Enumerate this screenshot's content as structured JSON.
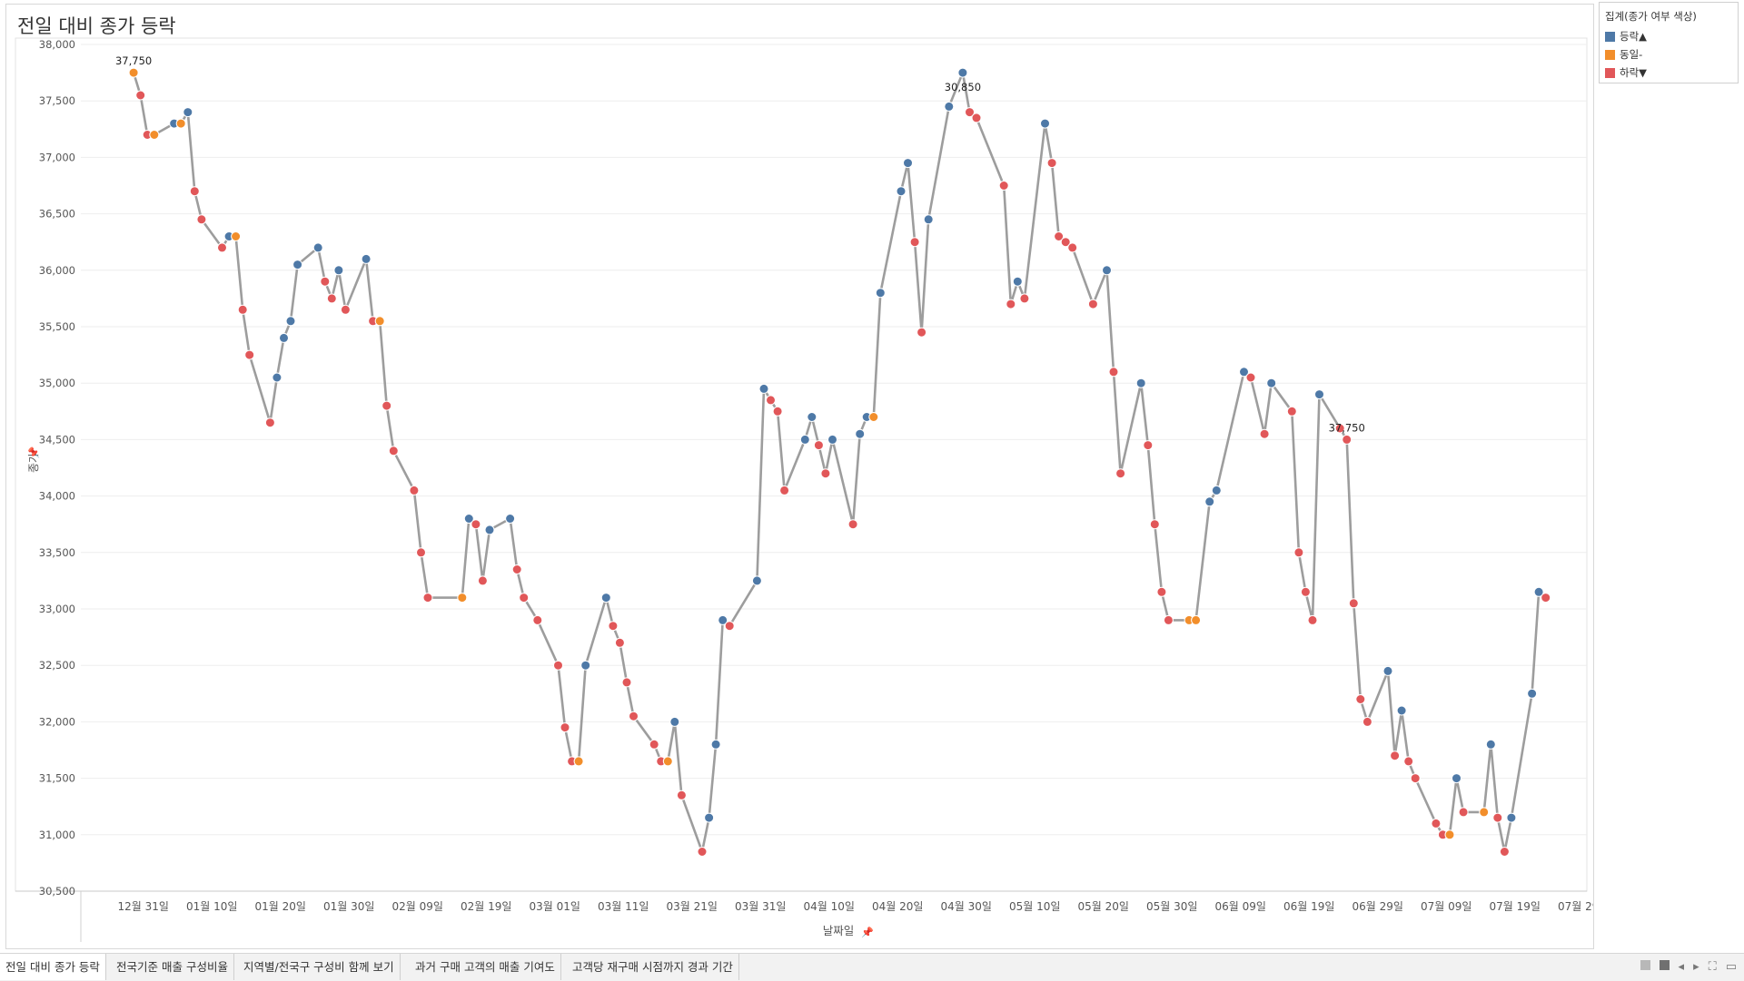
{
  "app": {
    "title": "전일 대비 종가 등락"
  },
  "legend": {
    "title": "집계(종가 여부 색상)",
    "items": [
      {
        "label": "등락▲",
        "color": "#4e79a7"
      },
      {
        "label": "동일-",
        "color": "#f28e2b"
      },
      {
        "label": "하락▼",
        "color": "#e15759"
      }
    ]
  },
  "tabs": [
    {
      "label": "전일 대비 종가 등락",
      "active": true
    },
    {
      "label": "전국기준 매출 구성비율",
      "active": false
    },
    {
      "label": "지역별/전국구 구성비 함께 보기",
      "active": false
    },
    {
      "label": "과거 구매 고객의 매출 기여도",
      "active": false
    },
    {
      "label": "고객당 재구매 시점까지 경과 기간",
      "active": false
    }
  ],
  "tab_controls": [
    "grid-view-icon",
    "single-view-icon",
    "prev-icon",
    "next-icon",
    "fullscreen-icon",
    "present-icon"
  ],
  "chart_data": {
    "type": "line",
    "title": "전일 대비 종가 등락",
    "xlabel": "날짜일",
    "ylabel": "종가",
    "x_ticks": [
      "12월 31일",
      "01월 10일",
      "01월 20일",
      "01월 30일",
      "02월 09일",
      "02월 19일",
      "03월 01일",
      "03월 11일",
      "03월 21일",
      "03월 31일",
      "04월 10일",
      "04월 20일",
      "04월 30일",
      "05월 10일",
      "05월 20일",
      "05월 30일",
      "06월 09일",
      "06월 19일",
      "06월 29일",
      "07월 09일",
      "07월 19일",
      "07월 29일"
    ],
    "y_ticks": [
      "30,500",
      "31,000",
      "31,500",
      "32,000",
      "32,500",
      "33,000",
      "33,500",
      "34,000",
      "34,500",
      "35,000",
      "35,500",
      "36,000",
      "36,500",
      "37,000",
      "37,500",
      "38,000"
    ],
    "ylim": [
      30500,
      38000
    ],
    "x_domain_days": [
      -9.1,
      210.5
    ],
    "grid": true,
    "series_color": "#9d9d9d",
    "colors": {
      "up": "#4e79a7",
      "same": "#f28e2b",
      "down": "#e15759"
    },
    "annotations": [
      {
        "text": "37,750",
        "point_index": 0,
        "position": "above"
      },
      {
        "text": "37,750",
        "point_index": 117,
        "position": "above"
      },
      {
        "text": "30,850",
        "point_index": 82,
        "position": "below"
      },
      {
        "text": "30,850",
        "point_index": 200,
        "position": "below"
      }
    ],
    "points": [
      {
        "day": -1.4,
        "value": 37750,
        "status": "same"
      },
      {
        "day": -0.4,
        "value": 37550,
        "status": "down"
      },
      {
        "day": 0.6,
        "value": 37200,
        "status": "down"
      },
      {
        "day": 1.6,
        "value": 37200,
        "status": "same"
      },
      {
        "day": 4.5,
        "value": 37300,
        "status": "up"
      },
      {
        "day": 5.5,
        "value": 37300,
        "status": "same"
      },
      {
        "day": 6.5,
        "value": 37400,
        "status": "up"
      },
      {
        "day": 7.5,
        "value": 36700,
        "status": "down"
      },
      {
        "day": 8.5,
        "value": 36450,
        "status": "down"
      },
      {
        "day": 11.5,
        "value": 36200,
        "status": "down"
      },
      {
        "day": 12.5,
        "value": 36300,
        "status": "up"
      },
      {
        "day": 13.5,
        "value": 36300,
        "status": "same"
      },
      {
        "day": 14.5,
        "value": 35650,
        "status": "down"
      },
      {
        "day": 15.5,
        "value": 35250,
        "status": "down"
      },
      {
        "day": 18.5,
        "value": 34650,
        "status": "down"
      },
      {
        "day": 19.5,
        "value": 35050,
        "status": "up"
      },
      {
        "day": 20.5,
        "value": 35400,
        "status": "up"
      },
      {
        "day": 21.5,
        "value": 35550,
        "status": "up"
      },
      {
        "day": 22.5,
        "value": 36050,
        "status": "up"
      },
      {
        "day": 25.5,
        "value": 36200,
        "status": "up"
      },
      {
        "day": 26.5,
        "value": 35900,
        "status": "down"
      },
      {
        "day": 27.5,
        "value": 35750,
        "status": "down"
      },
      {
        "day": 28.5,
        "value": 36000,
        "status": "up"
      },
      {
        "day": 29.5,
        "value": 35650,
        "status": "down"
      },
      {
        "day": 32.5,
        "value": 36100,
        "status": "up"
      },
      {
        "day": 33.5,
        "value": 35550,
        "status": "down"
      },
      {
        "day": 34.5,
        "value": 35550,
        "status": "same"
      },
      {
        "day": 35.5,
        "value": 34800,
        "status": "down"
      },
      {
        "day": 36.5,
        "value": 34400,
        "status": "down"
      },
      {
        "day": 39.5,
        "value": 34050,
        "status": "down"
      },
      {
        "day": 40.5,
        "value": 33500,
        "status": "down"
      },
      {
        "day": 41.5,
        "value": 33100,
        "status": "down"
      },
      {
        "day": 46.5,
        "value": 33100,
        "status": "same"
      },
      {
        "day": 47.5,
        "value": 33800,
        "status": "up"
      },
      {
        "day": 48.5,
        "value": 33750,
        "status": "down"
      },
      {
        "day": 49.5,
        "value": 33250,
        "status": "down"
      },
      {
        "day": 50.5,
        "value": 33700,
        "status": "up"
      },
      {
        "day": 53.5,
        "value": 33800,
        "status": "up"
      },
      {
        "day": 54.5,
        "value": 33350,
        "status": "down"
      },
      {
        "day": 55.5,
        "value": 33100,
        "status": "down"
      },
      {
        "day": 57.5,
        "value": 32900,
        "status": "down"
      },
      {
        "day": 60.5,
        "value": 32500,
        "status": "down"
      },
      {
        "day": 61.5,
        "value": 31950,
        "status": "down"
      },
      {
        "day": 62.5,
        "value": 31650,
        "status": "down"
      },
      {
        "day": 63.5,
        "value": 31650,
        "status": "same"
      },
      {
        "day": 64.5,
        "value": 32500,
        "status": "up"
      },
      {
        "day": 67.5,
        "value": 33100,
        "status": "up"
      },
      {
        "day": 68.5,
        "value": 32850,
        "status": "down"
      },
      {
        "day": 69.5,
        "value": 32700,
        "status": "down"
      },
      {
        "day": 70.5,
        "value": 32350,
        "status": "down"
      },
      {
        "day": 71.5,
        "value": 32050,
        "status": "down"
      },
      {
        "day": 74.5,
        "value": 31800,
        "status": "down"
      },
      {
        "day": 75.5,
        "value": 31650,
        "status": "down"
      },
      {
        "day": 76.5,
        "value": 31650,
        "status": "same"
      },
      {
        "day": 77.5,
        "value": 32000,
        "status": "up"
      },
      {
        "day": 78.5,
        "value": 31350,
        "status": "down"
      },
      {
        "day": 81.5,
        "value": 30850,
        "status": "down"
      },
      {
        "day": 82.5,
        "value": 31150,
        "status": "up"
      },
      {
        "day": 83.5,
        "value": 31800,
        "status": "up"
      },
      {
        "day": 84.5,
        "value": 32900,
        "status": "up"
      },
      {
        "day": 85.5,
        "value": 32850,
        "status": "down"
      },
      {
        "day": 89.5,
        "value": 33250,
        "status": "up"
      },
      {
        "day": 90.5,
        "value": 34950,
        "status": "up"
      },
      {
        "day": 91.5,
        "value": 34850,
        "status": "down"
      },
      {
        "day": 92.5,
        "value": 34750,
        "status": "down"
      },
      {
        "day": 93.5,
        "value": 34050,
        "status": "down"
      },
      {
        "day": 96.5,
        "value": 34500,
        "status": "up"
      },
      {
        "day": 97.5,
        "value": 34700,
        "status": "up"
      },
      {
        "day": 98.5,
        "value": 34450,
        "status": "down"
      },
      {
        "day": 99.5,
        "value": 34200,
        "status": "down"
      },
      {
        "day": 100.5,
        "value": 34500,
        "status": "up"
      },
      {
        "day": 103.5,
        "value": 33750,
        "status": "down"
      },
      {
        "day": 104.5,
        "value": 34550,
        "status": "up"
      },
      {
        "day": 105.5,
        "value": 34700,
        "status": "up"
      },
      {
        "day": 106.5,
        "value": 34700,
        "status": "same"
      },
      {
        "day": 107.5,
        "value": 35800,
        "status": "up"
      },
      {
        "day": 110.5,
        "value": 36700,
        "status": "up"
      },
      {
        "day": 111.5,
        "value": 36950,
        "status": "up"
      },
      {
        "day": 112.5,
        "value": 36250,
        "status": "down"
      },
      {
        "day": 113.5,
        "value": 35450,
        "status": "down"
      },
      {
        "day": 114.5,
        "value": 36450,
        "status": "up"
      },
      {
        "day": 117.5,
        "value": 37450,
        "status": "up"
      },
      {
        "day": 119.5,
        "value": 37750,
        "status": "up"
      },
      {
        "day": 120.5,
        "value": 37400,
        "status": "down"
      },
      {
        "day": 121.5,
        "value": 37350,
        "status": "down"
      },
      {
        "day": 125.5,
        "value": 36750,
        "status": "down"
      },
      {
        "day": 126.5,
        "value": 35700,
        "status": "down"
      },
      {
        "day": 127.5,
        "value": 35900,
        "status": "up"
      },
      {
        "day": 128.5,
        "value": 35750,
        "status": "down"
      },
      {
        "day": 131.5,
        "value": 37300,
        "status": "up"
      },
      {
        "day": 132.5,
        "value": 36950,
        "status": "down"
      },
      {
        "day": 133.5,
        "value": 36300,
        "status": "down"
      },
      {
        "day": 134.5,
        "value": 36250,
        "status": "down"
      },
      {
        "day": 135.5,
        "value": 36200,
        "status": "down"
      },
      {
        "day": 138.5,
        "value": 35700,
        "status": "down"
      },
      {
        "day": 140.5,
        "value": 36000,
        "status": "up"
      },
      {
        "day": 141.5,
        "value": 35100,
        "status": "down"
      },
      {
        "day": 142.5,
        "value": 34200,
        "status": "down"
      },
      {
        "day": 145.5,
        "value": 35000,
        "status": "up"
      },
      {
        "day": 146.5,
        "value": 34450,
        "status": "down"
      },
      {
        "day": 147.5,
        "value": 33750,
        "status": "down"
      },
      {
        "day": 148.5,
        "value": 33150,
        "status": "down"
      },
      {
        "day": 149.5,
        "value": 32900,
        "status": "down"
      },
      {
        "day": 152.5,
        "value": 32900,
        "status": "same"
      },
      {
        "day": 153.5,
        "value": 32900,
        "status": "same"
      },
      {
        "day": 155.5,
        "value": 33950,
        "status": "up"
      },
      {
        "day": 156.5,
        "value": 34050,
        "status": "up"
      },
      {
        "day": 160.5,
        "value": 35100,
        "status": "up"
      },
      {
        "day": 161.5,
        "value": 35050,
        "status": "down"
      },
      {
        "day": 163.5,
        "value": 34550,
        "status": "down"
      },
      {
        "day": 164.5,
        "value": 35000,
        "status": "up"
      },
      {
        "day": 167.5,
        "value": 34750,
        "status": "down"
      },
      {
        "day": 168.5,
        "value": 33500,
        "status": "down"
      },
      {
        "day": 169.5,
        "value": 33150,
        "status": "down"
      },
      {
        "day": 170.5,
        "value": 32900,
        "status": "down"
      },
      {
        "day": 171.5,
        "value": 34900,
        "status": "up"
      },
      {
        "day": 174.5,
        "value": 34600,
        "status": "down"
      },
      {
        "day": 175.5,
        "value": 34500,
        "status": "down"
      },
      {
        "day": 176.5,
        "value": 33050,
        "status": "down"
      },
      {
        "day": 177.5,
        "value": 32200,
        "status": "down"
      },
      {
        "day": 178.5,
        "value": 32000,
        "status": "down"
      },
      {
        "day": 181.5,
        "value": 32450,
        "status": "up"
      },
      {
        "day": 182.5,
        "value": 31700,
        "status": "down"
      },
      {
        "day": 183.5,
        "value": 32100,
        "status": "up"
      },
      {
        "day": 184.5,
        "value": 31650,
        "status": "down"
      },
      {
        "day": 185.5,
        "value": 31500,
        "status": "down"
      },
      {
        "day": 188.5,
        "value": 31100,
        "status": "down"
      },
      {
        "day": 189.5,
        "value": 31000,
        "status": "down"
      },
      {
        "day": 190.5,
        "value": 31000,
        "status": "same"
      },
      {
        "day": 191.5,
        "value": 31500,
        "status": "up"
      },
      {
        "day": 192.5,
        "value": 31200,
        "status": "down"
      },
      {
        "day": 195.5,
        "value": 31200,
        "status": "same"
      },
      {
        "day": 196.5,
        "value": 31800,
        "status": "up"
      },
      {
        "day": 197.5,
        "value": 31150,
        "status": "down"
      },
      {
        "day": 198.5,
        "value": 30850,
        "status": "down"
      },
      {
        "day": 199.5,
        "value": 31150,
        "status": "up"
      },
      {
        "day": 202.5,
        "value": 32250,
        "status": "up"
      },
      {
        "day": 203.5,
        "value": 33150,
        "status": "up"
      },
      {
        "day": 204.5,
        "value": 33100,
        "status": "down"
      }
    ]
  }
}
